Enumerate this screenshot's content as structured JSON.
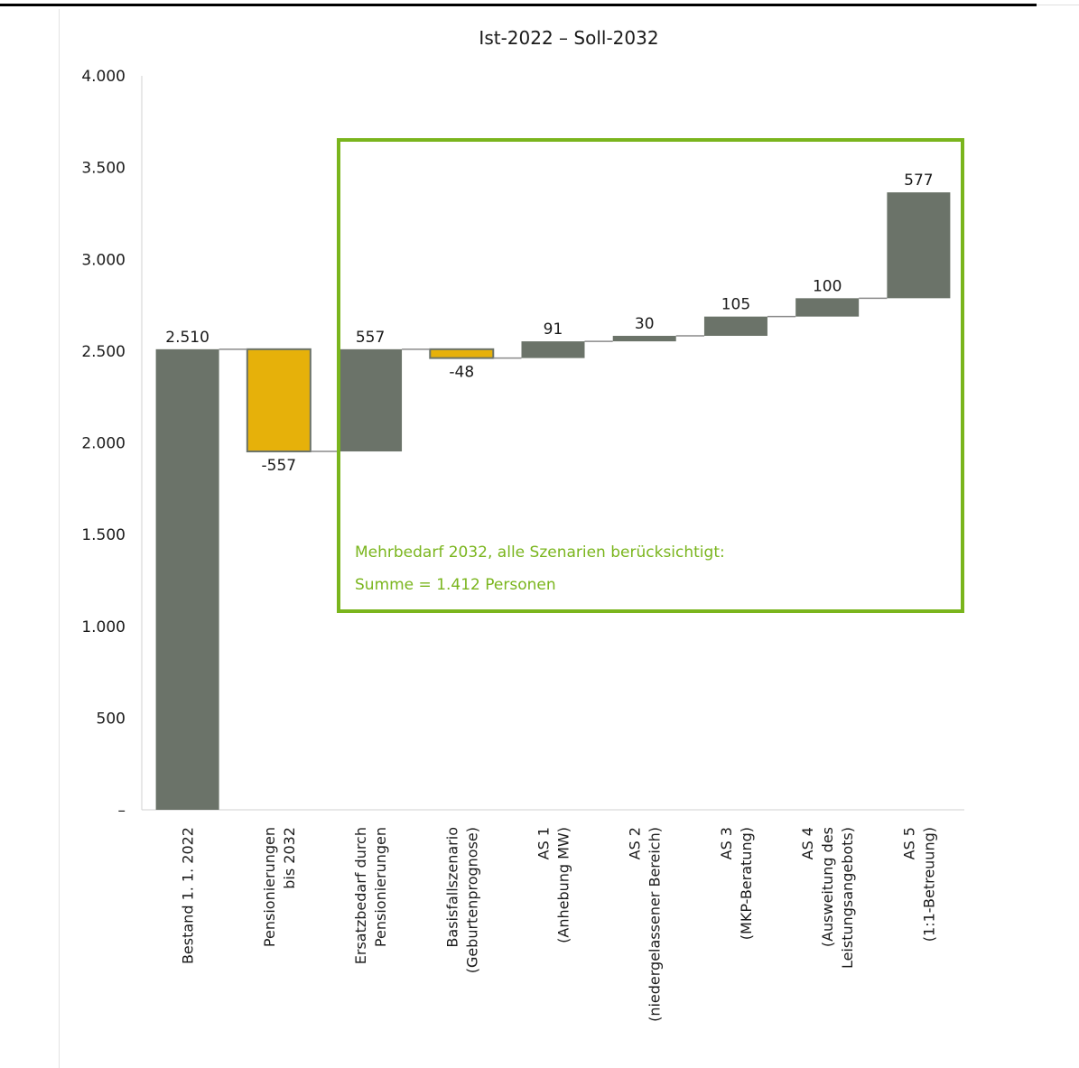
{
  "chart_data": {
    "type": "waterfall",
    "title": "Ist-2022 – Soll-2032",
    "ylim": [
      0,
      4000
    ],
    "yticks": [
      {
        "value": 0,
        "label": "–"
      },
      {
        "value": 500,
        "label": "500"
      },
      {
        "value": 1000,
        "label": "1.000"
      },
      {
        "value": 1500,
        "label": "1.500"
      },
      {
        "value": 2000,
        "label": "2.000"
      },
      {
        "value": 2500,
        "label": "2.500"
      },
      {
        "value": 3000,
        "label": "3.000"
      },
      {
        "value": 3500,
        "label": "3.500"
      },
      {
        "value": 4000,
        "label": "4.000"
      }
    ],
    "bars": [
      {
        "category": [
          "Bestand 1. 1. 2022"
        ],
        "value": 2510,
        "kind": "total",
        "label": "2.510",
        "color": "#6b7369"
      },
      {
        "category": [
          "Pensionierungen",
          "bis 2032"
        ],
        "value": -557,
        "kind": "delta",
        "label": "-557",
        "color": "#e6b10a"
      },
      {
        "category": [
          "Ersatzbedarf durch",
          "Pensionierungen"
        ],
        "value": 557,
        "kind": "delta",
        "label": "557",
        "color": "#6b7369"
      },
      {
        "category": [
          "Basisfallszenario",
          "(Geburtenprognose)"
        ],
        "value": -48,
        "kind": "delta",
        "label": "-48",
        "color": "#e6b10a"
      },
      {
        "category": [
          "AS 1",
          "(Anhebung MW)"
        ],
        "value": 91,
        "kind": "delta",
        "label": "91",
        "color": "#6b7369"
      },
      {
        "category": [
          "AS 2",
          "(niedergelassener Bereich)"
        ],
        "value": 30,
        "kind": "delta",
        "label": "30",
        "color": "#6b7369"
      },
      {
        "category": [
          "AS 3",
          "(MKP-Beratung)"
        ],
        "value": 105,
        "kind": "delta",
        "label": "105",
        "color": "#6b7369"
      },
      {
        "category": [
          "AS 4",
          "(Ausweitung des",
          "Leistungsangebots)"
        ],
        "value": 100,
        "kind": "delta",
        "label": "100",
        "color": "#6b7369"
      },
      {
        "category": [
          "AS 5",
          "(1:1-Betreuung)"
        ],
        "value": 577,
        "kind": "delta",
        "label": "577",
        "color": "#6b7369"
      }
    ],
    "annotation": {
      "lines": [
        "Mehrbedarf 2032, alle Szenarien berücksichtigt:",
        "Summe = 1.412 Personen"
      ],
      "color": "#7ab51d"
    }
  }
}
